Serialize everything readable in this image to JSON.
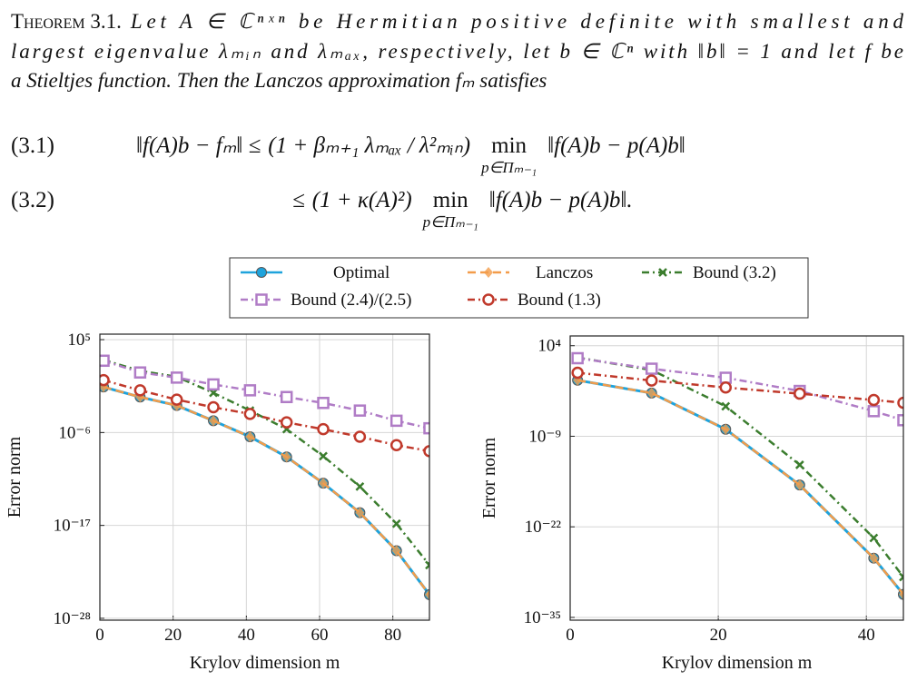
{
  "theorem": {
    "heading": "Theorem 3.1.",
    "lines": [
      "Let A ∈ ℂⁿˣⁿ be Hermitian positive definite with smallest and",
      "largest eigenvalue λₘᵢₙ and λₘₐₓ, respectively, let b ∈ ℂⁿ with ‖b‖ = 1 and let f be",
      "a Stieltjes function. Then the Lanczos approximation fₘ satisfies"
    ]
  },
  "equations": [
    {
      "label": "(3.1)",
      "lhs": "‖f(A)b − fₘ‖ ≤",
      "factor": "(1 + βₘ₊₁ λₘₐₓ / λ²ₘᵢₙ)",
      "min": "min",
      "min_sub": "p∈Πₘ₋₁",
      "rhs": "‖f(A)b − p(A)b‖"
    },
    {
      "label": "(3.2)",
      "lhs": "≤",
      "factor": "(1 + κ(A)²)",
      "min": "min",
      "min_sub": "p∈Πₘ₋₁",
      "rhs": "‖f(A)b − p(A)b‖."
    }
  ],
  "chart_data": [
    {
      "type": "line",
      "xlabel": "Krylov dimension m",
      "ylabel": "Error norm",
      "yscale": "log",
      "grid": true,
      "legend": "above",
      "x": [
        1,
        11,
        21,
        31,
        41,
        51,
        61,
        71,
        81,
        90
      ],
      "xlim": [
        0,
        90
      ],
      "xticks": [
        0,
        20,
        40,
        60,
        80
      ],
      "ylim": [
        6e-29,
        450000.0
      ],
      "yticks": [
        {
          "value": 100000.0,
          "label": "10⁵"
        },
        {
          "value": 1e-06,
          "label": "10⁻⁶"
        },
        {
          "value": 1e-17,
          "label": "10⁻¹⁷"
        },
        {
          "value": 1e-28,
          "label": "10⁻²⁸"
        }
      ],
      "series": [
        {
          "name": "Optimal",
          "color": "#1ea3dc",
          "marker": "circle",
          "linestyle": "solid",
          "values": [
            0.25,
            0.016,
            0.0016,
            2.5e-05,
            3.2e-07,
            1.3e-09,
            1e-12,
            3.2e-16,
            1e-20,
            6.3e-26
          ]
        },
        {
          "name": "Lanczos",
          "color": "#f39c4a",
          "marker": "diamond",
          "linestyle": "dashed",
          "values": [
            0.25,
            0.016,
            0.0016,
            2.5e-05,
            3.2e-07,
            1.3e-09,
            1e-12,
            3.2e-16,
            1e-20,
            6.3e-26
          ]
        },
        {
          "name": "Bound (3.2)",
          "color": "#3b7d2e",
          "marker": "x",
          "linestyle": "dashdotted",
          "values": [
            400.0,
            20.0,
            4.0,
            0.05,
            0.0004,
            2.5e-06,
            1.6e-09,
            4e-13,
            1.6e-17,
            2e-22
          ]
        },
        {
          "name": "Bound (2.4)/(2.5)",
          "color": "#b07cc6",
          "marker": "square",
          "linestyle": "dashdotted",
          "values": [
            320.0,
            13.0,
            3.2,
            0.5,
            0.1,
            0.016,
            0.0032,
            0.0004,
            2.5e-05,
            3.2e-06
          ]
        },
        {
          "name": "Bound (1.3)",
          "color": "#c0392b",
          "marker": "ring",
          "linestyle": "dashdotted",
          "values": [
            1.6,
            0.1,
            0.0079,
            0.001,
            0.00016,
            1.6e-05,
            2.5e-06,
            3.2e-07,
            3.2e-08,
            6.3e-09
          ]
        }
      ]
    },
    {
      "type": "line",
      "xlabel": "Krylov dimension m",
      "ylabel": "Error norm",
      "yscale": "log",
      "grid": true,
      "x": [
        1,
        11,
        21,
        31,
        41,
        45
      ],
      "xlim": [
        0,
        45
      ],
      "xticks": [
        0,
        20,
        40
      ],
      "ylim": [
        4e-36,
        250000.0
      ],
      "yticks": [
        {
          "value": 10000.0,
          "label": "10⁴"
        },
        {
          "value": 1e-09,
          "label": "10⁻⁹"
        },
        {
          "value": 1e-22,
          "label": "10⁻²²"
        },
        {
          "value": 1e-35,
          "label": "10⁻³⁵"
        }
      ],
      "series": [
        {
          "color": "#1ea3dc",
          "marker": "circle",
          "linestyle": "solid",
          "values": [
            0.11,
            0.0016,
            1e-08,
            1e-16,
            3.2e-27,
            2e-32
          ]
        },
        {
          "color": "#f39c4a",
          "marker": "diamond",
          "linestyle": "dashed",
          "values": [
            0.11,
            0.0016,
            1e-08,
            1e-16,
            3.2e-27,
            2e-32
          ]
        },
        {
          "color": "#3b7d2e",
          "marker": "x",
          "linestyle": "dashdotted",
          "values": [
            200.0,
            3.2,
            2e-05,
            7.9e-14,
            2.5e-24,
            6.3e-30
          ]
        },
        {
          "color": "#b07cc6",
          "marker": "square",
          "linestyle": "dashdotted",
          "values": [
            160.0,
            5.0,
            0.25,
            0.0032,
            4e-06,
            2e-07
          ]
        },
        {
          "color": "#c0392b",
          "marker": "ring",
          "linestyle": "dashdotted",
          "values": [
            1.3,
            0.1,
            0.01,
            0.0013,
            0.00016,
            6.3e-05
          ]
        }
      ]
    }
  ]
}
